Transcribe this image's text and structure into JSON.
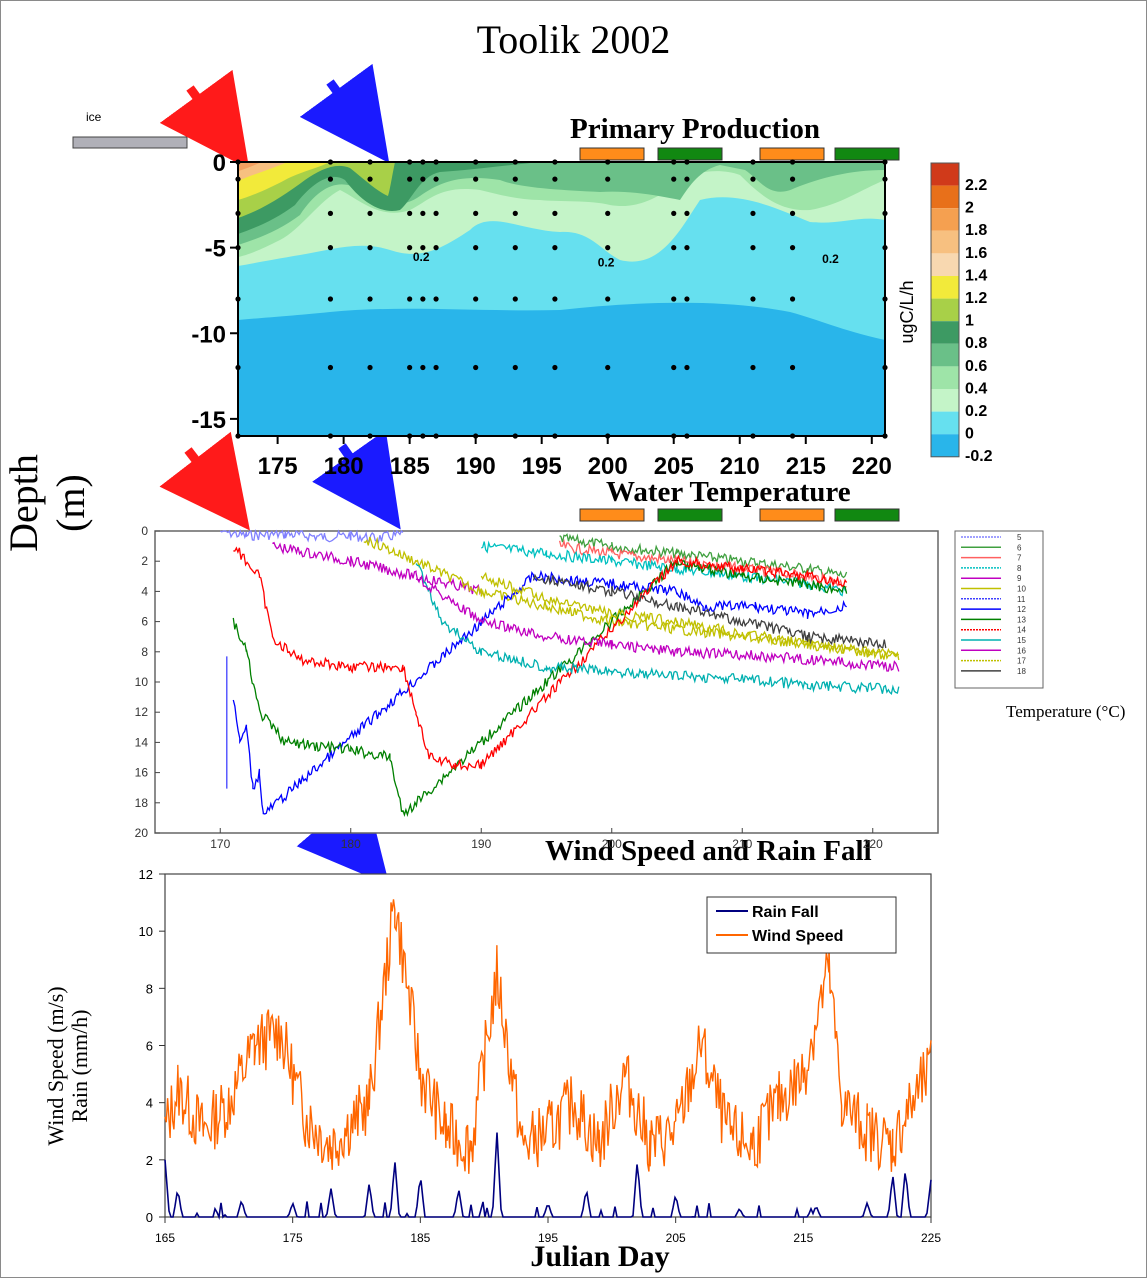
{
  "title": "Toolik 2002",
  "depth_label": "Depth (m)",
  "ice_label": "ice",
  "chart_data": [
    {
      "type": "heatmap",
      "title": "Primary Production",
      "xlabel": "",
      "ylabel": "Depth (m)",
      "colorbar_label": "ugC/L/h",
      "xlim": [
        172,
        221
      ],
      "ylim": [
        -16,
        0
      ],
      "x_ticks": [
        175,
        180,
        185,
        190,
        195,
        200,
        205,
        210,
        215,
        220
      ],
      "y_ticks": [
        0,
        -5,
        -10,
        -15
      ],
      "colorbar_levels": [
        "2.2",
        "2",
        "1.8",
        "1.6",
        "1.4",
        "1.2",
        "1",
        "0.8",
        "0.6",
        "0.4",
        "0.2",
        "0",
        "-0.2"
      ],
      "contour_labels": [
        {
          "x": 186,
          "y": -5.5,
          "text": "0.2"
        },
        {
          "x": 200,
          "y": -5.8,
          "text": "0.2"
        },
        {
          "x": 217,
          "y": -5.6,
          "text": "0.2"
        }
      ],
      "sample_days": [
        172,
        179,
        182,
        185,
        186,
        187,
        190,
        193,
        196,
        200,
        205,
        206,
        211,
        214,
        221
      ]
    },
    {
      "type": "line",
      "title": "Water Temperature",
      "xlabel": "",
      "ylabel": "",
      "legend_title": "Temperature (°C)",
      "legend_position": "right",
      "xlim": [
        165,
        225
      ],
      "ylim": [
        20,
        0
      ],
      "x_ticks": [
        170,
        180,
        190,
        200,
        210,
        220
      ],
      "y_ticks": [
        0,
        2,
        4,
        6,
        8,
        10,
        12,
        14,
        16,
        18,
        20
      ],
      "series": [
        {
          "name": "5",
          "color": "#8080ff",
          "x": [
            170,
            172,
            175,
            178,
            180,
            182,
            184
          ],
          "y": [
            0,
            0.3,
            0.2,
            0.4,
            0.3,
            0.5,
            0.2
          ]
        },
        {
          "name": "6",
          "color": "#40a040",
          "x": [
            196,
            200,
            205,
            210,
            215,
            218
          ],
          "y": [
            0.5,
            1,
            1.5,
            2,
            2.5,
            3
          ]
        },
        {
          "name": "7",
          "color": "#ff6060",
          "x": [
            196,
            200,
            205,
            210,
            215,
            218
          ],
          "y": [
            1,
            1.5,
            2,
            2.5,
            3,
            3.5
          ]
        },
        {
          "name": "8",
          "color": "#00c0c0",
          "x": [
            190,
            195,
            200,
            205,
            210,
            215,
            218
          ],
          "y": [
            1,
            1.5,
            2,
            2.5,
            3,
            3.5,
            4
          ]
        },
        {
          "name": "9",
          "color": "#c000c0",
          "x": [
            174,
            180,
            185,
            190
          ],
          "y": [
            1,
            2,
            3,
            4
          ]
        },
        {
          "name": "10",
          "color": "#c0c000",
          "x": [
            181,
            185,
            190,
            195,
            200,
            205,
            210,
            215,
            222
          ],
          "y": [
            0.5,
            2,
            4,
            5,
            6,
            6.5,
            7,
            7.5,
            8.2
          ]
        },
        {
          "name": "11",
          "color": "#4040ff",
          "x": [
            170.5,
            170.5
          ],
          "y": [
            8,
            17
          ]
        },
        {
          "name": "12",
          "color": "#0000ff",
          "x": [
            171,
            171.5,
            172,
            172.5,
            173,
            173.3,
            194,
            200,
            205,
            207,
            211,
            215,
            218
          ],
          "y": [
            11,
            14,
            13,
            17,
            16,
            18.8,
            3,
            3.5,
            4,
            5,
            5,
            5.5,
            5
          ]
        },
        {
          "name": "13",
          "color": "#008000",
          "x": [
            171,
            172,
            173,
            175,
            180,
            183,
            184,
            205,
            210,
            215,
            218
          ],
          "y": [
            6,
            8,
            12,
            14,
            14.5,
            15,
            18.8,
            2,
            3,
            3.5,
            4
          ]
        },
        {
          "name": "14",
          "color": "#ff0000",
          "x": [
            171,
            173,
            174,
            176,
            180,
            184,
            185,
            186,
            188,
            190,
            205,
            210,
            215,
            218
          ],
          "y": [
            1,
            3,
            7,
            8.5,
            9,
            9,
            12,
            15,
            15.5,
            15.5,
            2,
            2.5,
            3,
            3.5
          ]
        },
        {
          "name": "15",
          "color": "#00b0b0",
          "x": [
            185,
            187,
            190,
            195,
            200,
            205,
            210,
            215,
            222
          ],
          "y": [
            2,
            6,
            8,
            9,
            9.3,
            9.6,
            9.8,
            10.2,
            10.5
          ]
        },
        {
          "name": "16",
          "color": "#c000c0",
          "x": [
            185,
            190,
            195,
            200,
            205,
            210,
            215,
            222
          ],
          "y": [
            3,
            6,
            7,
            7.5,
            8,
            8.2,
            8.5,
            9
          ]
        },
        {
          "name": "17",
          "color": "#c0c000",
          "x": [
            190,
            195,
            200,
            205,
            210,
            215,
            222
          ],
          "y": [
            3,
            4.5,
            5.5,
            6,
            6.8,
            7.5,
            8.3
          ]
        },
        {
          "name": "18",
          "color": "#404040",
          "x": [
            194,
            200,
            205,
            210,
            215,
            221
          ],
          "y": [
            3,
            4,
            5,
            6,
            7,
            7.5
          ]
        }
      ]
    },
    {
      "type": "line",
      "title": "Wind Speed and Rain Fall",
      "xlabel": "Julian Day",
      "ylabel": "Wind Speed (m/s)\nRain (mm/h)",
      "xlim": [
        165,
        225
      ],
      "ylim": [
        0,
        12
      ],
      "x_ticks": [
        165,
        175,
        185,
        195,
        205,
        215,
        225
      ],
      "y_ticks": [
        0,
        2,
        4,
        6,
        8,
        10,
        12
      ],
      "legend_position": "top-right",
      "series": [
        {
          "name": "Rain Fall",
          "color": "#000080",
          "x": [
            165,
            166,
            171,
            175,
            178,
            181,
            183,
            185,
            188,
            191,
            195,
            198,
            202,
            205,
            210,
            216,
            220,
            222,
            223,
            225
          ],
          "y": [
            2,
            1,
            0.6,
            0.5,
            1,
            1.2,
            2,
            1.5,
            1,
            3,
            0.5,
            1,
            2,
            0.8,
            0.3,
            0.4,
            0.5,
            1.5,
            1.7,
            1.3
          ]
        },
        {
          "name": "Wind Speed",
          "color": "#ff6600",
          "x": [
            165,
            166,
            168,
            170,
            172,
            174,
            176,
            178,
            180,
            181,
            183,
            185,
            187,
            189,
            191,
            193,
            195,
            197,
            199,
            201,
            203,
            205,
            207,
            209,
            211,
            213,
            215,
            217,
            218,
            220,
            222,
            223,
            225
          ],
          "y": [
            3,
            4.5,
            3,
            4,
            6,
            6.5,
            3.5,
            2.5,
            3.5,
            4,
            11,
            5,
            3,
            2.5,
            8.5,
            2.5,
            3,
            4,
            2.5,
            5,
            2.5,
            3,
            6,
            3,
            2.5,
            4,
            5,
            8.7,
            4,
            3,
            2.5,
            3.5,
            5.2
          ]
        }
      ]
    }
  ]
}
